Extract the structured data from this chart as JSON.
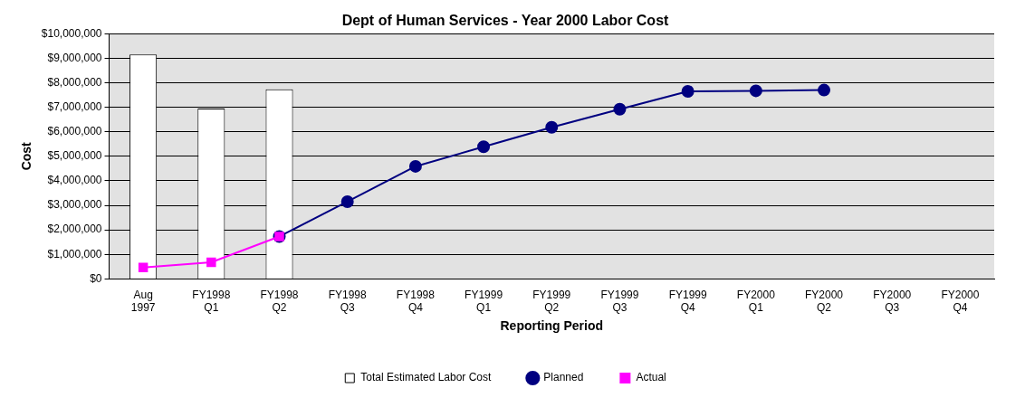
{
  "chart_data": {
    "type": "bar",
    "title": "Dept of Human Services - Year 2000 Labor Cost",
    "xlabel": "Reporting Period",
    "ylabel": "Cost",
    "categories": [
      "Aug\n1997",
      "FY1998\nQ1",
      "FY1998\nQ2",
      "FY1998\nQ3",
      "FY1998\nQ4",
      "FY1999\nQ1",
      "FY1999\nQ2",
      "FY1999\nQ3",
      "FY1999\nQ4",
      "FY2000\nQ1",
      "FY2000\nQ2",
      "FY2000\nQ3",
      "FY2000\nQ4"
    ],
    "series": [
      {
        "name": "Total Estimated Labor Cost",
        "color": "#ffffff",
        "values": [
          9150000,
          6950000,
          7730000,
          null,
          null,
          null,
          null,
          null,
          null,
          null,
          null,
          null,
          null
        ]
      },
      {
        "name": "Planned",
        "type": "line",
        "color": "#000080",
        "marker": "circle",
        "values": [
          null,
          null,
          1730000,
          3150000,
          4590000,
          5390000,
          6180000,
          6920000,
          7650000,
          7670000,
          7700000,
          null,
          null
        ]
      },
      {
        "name": "Actual",
        "type": "line",
        "color": "#ff00ff",
        "marker": "square",
        "values": [
          470000,
          680000,
          1730000,
          null,
          null,
          null,
          null,
          null,
          null,
          null,
          null,
          null,
          null
        ]
      }
    ],
    "ylim": [
      0,
      10000000
    ],
    "yticks": [
      {
        "value": 0,
        "label": "$0"
      },
      {
        "value": 1000000,
        "label": "$1,000,000"
      },
      {
        "value": 2000000,
        "label": "$2,000,000"
      },
      {
        "value": 3000000,
        "label": "$3,000,000"
      },
      {
        "value": 4000000,
        "label": "$4,000,000"
      },
      {
        "value": 5000000,
        "label": "$5,000,000"
      },
      {
        "value": 6000000,
        "label": "$6,000,000"
      },
      {
        "value": 7000000,
        "label": "$7,000,000"
      },
      {
        "value": 8000000,
        "label": "$8,000,000"
      },
      {
        "value": 9000000,
        "label": "$9,000,000"
      },
      {
        "value": 10000000,
        "label": "$10,000,000"
      }
    ],
    "grid": "y",
    "legend": "bottom"
  }
}
